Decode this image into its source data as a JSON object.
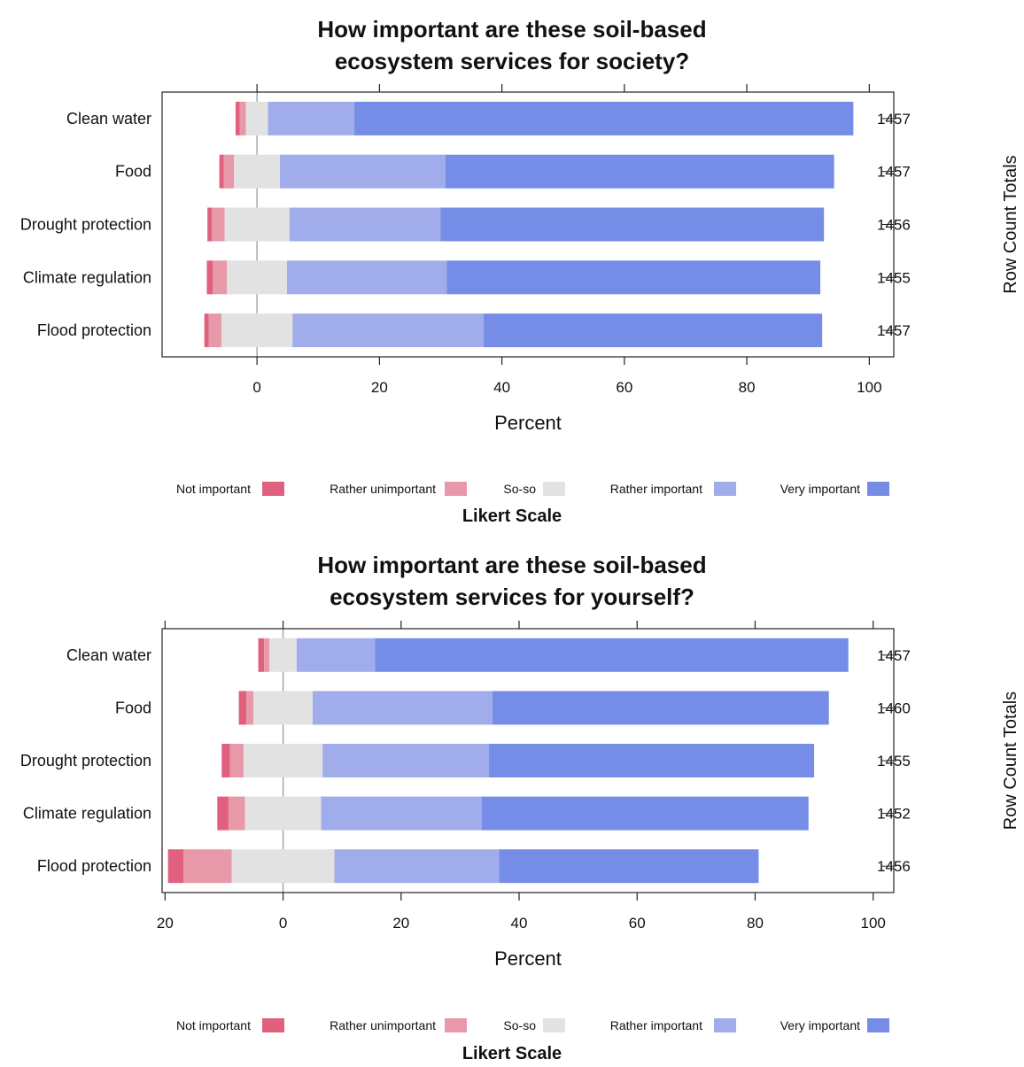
{
  "colors": {
    "Not important": "#e0607e",
    "Rather unimportant": "#e899a9",
    "So-so": "#e2e2e2",
    "Rather important": "#a1acea",
    "Very important": "#758de6"
  },
  "chart_data": [
    {
      "type": "bar",
      "orientation": "horizontal",
      "stacking": "diverging",
      "title": "How important are these soil-based ecosystem services for society?",
      "title_lines": [
        "How important are these soil-based",
        "ecosystem services for society?"
      ],
      "xlabel": "Percent",
      "ylabel_right": "Row Count Totals",
      "xlim": [
        -15.5,
        104
      ],
      "xticks": [
        0,
        20,
        40,
        60,
        80,
        100
      ],
      "xtick_labels": [
        "0",
        "20",
        "40",
        "60",
        "80",
        "100"
      ],
      "zero_line": true,
      "categories": [
        "Clean water",
        "Food",
        "Drought protection",
        "Climate regulation",
        "Flood protection"
      ],
      "row_totals": [
        "1457",
        "1457",
        "1456",
        "1455",
        "1457"
      ],
      "legend": {
        "title": "Likert Scale",
        "placement": "bottom",
        "entries": [
          "Not important",
          "Rather unimportant",
          "So-so",
          "Rather important",
          "Very important"
        ]
      },
      "series": [
        {
          "name": "Not important",
          "values": [
            0.7,
            0.7,
            0.7,
            1.0,
            0.7
          ]
        },
        {
          "name": "Rather unimportant",
          "values": [
            1.0,
            1.7,
            2.1,
            2.3,
            2.1
          ]
        },
        {
          "name": "So-so",
          "values": [
            3.6,
            7.5,
            10.6,
            9.8,
            11.6
          ]
        },
        {
          "name": "Rather important",
          "values": [
            14.1,
            27.0,
            24.7,
            26.1,
            31.2
          ]
        },
        {
          "name": "Very important",
          "values": [
            81.5,
            63.5,
            62.6,
            61.0,
            55.3
          ]
        }
      ]
    },
    {
      "type": "bar",
      "orientation": "horizontal",
      "stacking": "diverging",
      "title": "How important are these soil-based ecosystem services for yourself?",
      "title_lines": [
        "How important are these soil-based",
        "ecosystem services for yourself?"
      ],
      "xlabel": "Percent",
      "ylabel_right": "Row Count Totals",
      "xlim": [
        -20.5,
        103.5
      ],
      "xticks": [
        -20,
        0,
        20,
        40,
        60,
        80,
        100
      ],
      "xtick_labels": [
        "20",
        "0",
        "20",
        "40",
        "60",
        "80",
        "100"
      ],
      "zero_line": true,
      "categories": [
        "Clean water",
        "Food",
        "Drought protection",
        "Climate regulation",
        "Flood protection"
      ],
      "row_totals": [
        "1457",
        "1460",
        "1455",
        "1452",
        "1456"
      ],
      "legend": {
        "title": "Likert Scale",
        "placement": "bottom",
        "entries": [
          "Not important",
          "Rather unimportant",
          "So-so",
          "Rather important",
          "Very important"
        ]
      },
      "series": [
        {
          "name": "Not important",
          "values": [
            1.0,
            1.3,
            1.4,
            1.9,
            2.6
          ]
        },
        {
          "name": "Rather unimportant",
          "values": [
            0.9,
            1.2,
            2.3,
            2.8,
            8.2
          ]
        },
        {
          "name": "So-so",
          "values": [
            4.6,
            10.0,
            13.4,
            12.9,
            17.4
          ]
        },
        {
          "name": "Rather important",
          "values": [
            13.3,
            30.5,
            28.2,
            27.2,
            27.9
          ]
        },
        {
          "name": "Very important",
          "values": [
            80.2,
            57.0,
            55.1,
            55.4,
            44.0
          ]
        }
      ]
    }
  ]
}
